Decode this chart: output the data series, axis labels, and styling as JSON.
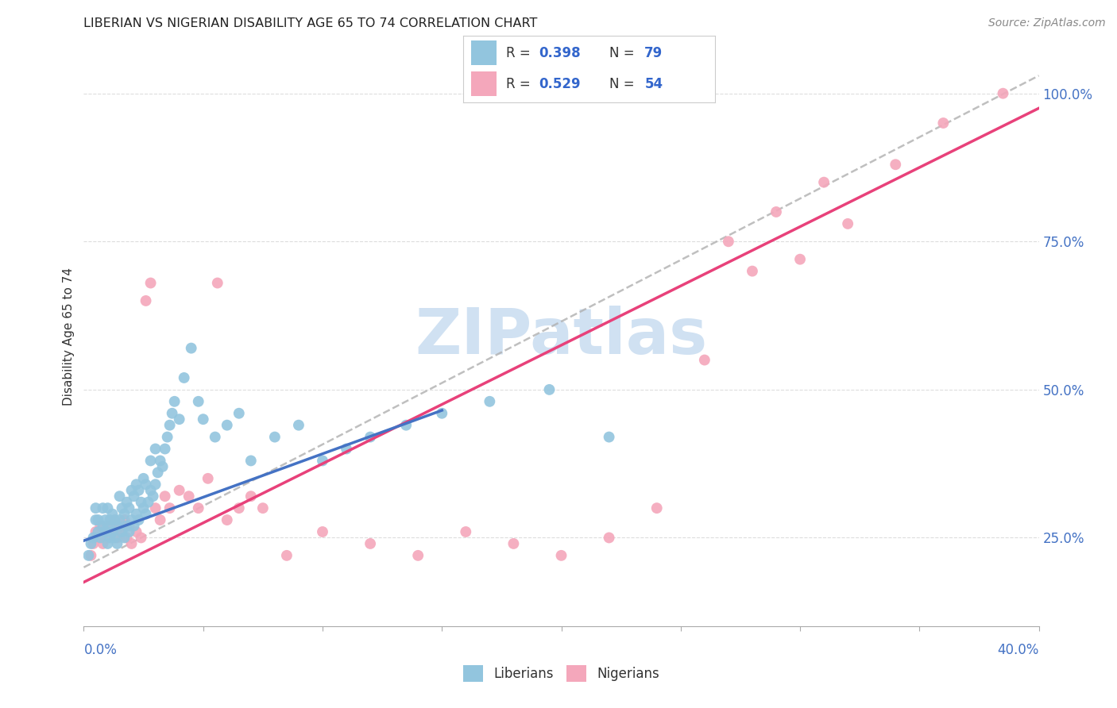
{
  "title": "LIBERIAN VS NIGERIAN DISABILITY AGE 65 TO 74 CORRELATION CHART",
  "source": "Source: ZipAtlas.com",
  "ylabel": "Disability Age 65 to 74",
  "right_yticks": [
    "100.0%",
    "75.0%",
    "50.0%",
    "25.0%"
  ],
  "right_ytick_vals": [
    1.0,
    0.75,
    0.5,
    0.25
  ],
  "xlim": [
    0.0,
    0.4
  ],
  "ylim": [
    0.1,
    1.08
  ],
  "liberian_R": 0.398,
  "liberian_N": 79,
  "nigerian_R": 0.529,
  "nigerian_N": 54,
  "liberian_color": "#92C5DE",
  "nigerian_color": "#F4A7BB",
  "liberian_line_color": "#4472C4",
  "nigerian_line_color": "#E8417A",
  "gray_line_color": "#B0B0B0",
  "watermark_color": "#C8D8F0",
  "legend_R_color": "#3366CC",
  "liberian_scatter_x": [
    0.002,
    0.003,
    0.004,
    0.005,
    0.005,
    0.006,
    0.006,
    0.007,
    0.008,
    0.008,
    0.009,
    0.009,
    0.01,
    0.01,
    0.01,
    0.011,
    0.011,
    0.012,
    0.012,
    0.013,
    0.013,
    0.014,
    0.014,
    0.015,
    0.015,
    0.016,
    0.016,
    0.017,
    0.017,
    0.018,
    0.018,
    0.019,
    0.019,
    0.02,
    0.02,
    0.021,
    0.021,
    0.022,
    0.022,
    0.023,
    0.023,
    0.024,
    0.025,
    0.025,
    0.026,
    0.026,
    0.027,
    0.028,
    0.028,
    0.029,
    0.03,
    0.03,
    0.031,
    0.032,
    0.033,
    0.034,
    0.035,
    0.036,
    0.037,
    0.038,
    0.04,
    0.042,
    0.045,
    0.048,
    0.05,
    0.055,
    0.06,
    0.065,
    0.07,
    0.08,
    0.09,
    0.1,
    0.11,
    0.12,
    0.135,
    0.15,
    0.17,
    0.195,
    0.22
  ],
  "liberian_scatter_y": [
    0.22,
    0.24,
    0.25,
    0.28,
    0.3,
    0.26,
    0.28,
    0.25,
    0.27,
    0.3,
    0.26,
    0.28,
    0.24,
    0.27,
    0.3,
    0.25,
    0.28,
    0.26,
    0.29,
    0.25,
    0.28,
    0.24,
    0.27,
    0.28,
    0.32,
    0.26,
    0.3,
    0.25,
    0.29,
    0.27,
    0.31,
    0.26,
    0.3,
    0.28,
    0.33,
    0.27,
    0.32,
    0.29,
    0.34,
    0.28,
    0.33,
    0.31,
    0.3,
    0.35,
    0.29,
    0.34,
    0.31,
    0.33,
    0.38,
    0.32,
    0.34,
    0.4,
    0.36,
    0.38,
    0.37,
    0.4,
    0.42,
    0.44,
    0.46,
    0.48,
    0.45,
    0.52,
    0.57,
    0.48,
    0.45,
    0.42,
    0.44,
    0.46,
    0.38,
    0.42,
    0.44,
    0.38,
    0.4,
    0.42,
    0.44,
    0.46,
    0.48,
    0.5,
    0.42
  ],
  "nigerian_scatter_x": [
    0.003,
    0.004,
    0.005,
    0.006,
    0.007,
    0.008,
    0.009,
    0.01,
    0.011,
    0.012,
    0.013,
    0.014,
    0.015,
    0.016,
    0.017,
    0.018,
    0.019,
    0.02,
    0.022,
    0.024,
    0.026,
    0.028,
    0.03,
    0.032,
    0.034,
    0.036,
    0.04,
    0.044,
    0.048,
    0.052,
    0.056,
    0.06,
    0.065,
    0.07,
    0.075,
    0.085,
    0.1,
    0.12,
    0.14,
    0.16,
    0.18,
    0.2,
    0.22,
    0.24,
    0.26,
    0.27,
    0.28,
    0.29,
    0.3,
    0.31,
    0.32,
    0.34,
    0.36,
    0.385
  ],
  "nigerian_scatter_y": [
    0.22,
    0.24,
    0.26,
    0.25,
    0.27,
    0.24,
    0.26,
    0.25,
    0.27,
    0.26,
    0.28,
    0.25,
    0.27,
    0.26,
    0.28,
    0.25,
    0.27,
    0.24,
    0.26,
    0.25,
    0.65,
    0.68,
    0.3,
    0.28,
    0.32,
    0.3,
    0.33,
    0.32,
    0.3,
    0.35,
    0.68,
    0.28,
    0.3,
    0.32,
    0.3,
    0.22,
    0.26,
    0.24,
    0.22,
    0.26,
    0.24,
    0.22,
    0.25,
    0.3,
    0.55,
    0.75,
    0.7,
    0.8,
    0.72,
    0.85,
    0.78,
    0.88,
    0.95,
    1.0
  ],
  "blue_line_x": [
    0.0,
    0.15
  ],
  "blue_line_y": [
    0.245,
    0.465
  ],
  "pink_line_x": [
    0.0,
    0.4
  ],
  "pink_line_y": [
    0.175,
    0.975
  ],
  "gray_line_x": [
    0.0,
    0.4
  ],
  "gray_line_y": [
    0.2,
    1.03
  ]
}
